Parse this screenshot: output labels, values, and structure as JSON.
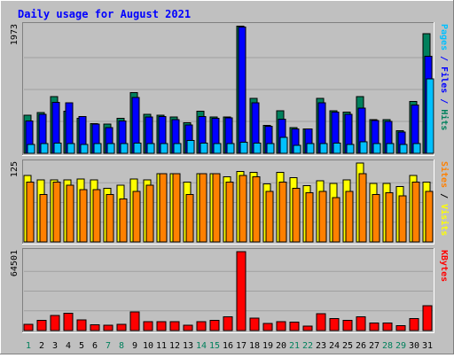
{
  "chart_data": {
    "type": "bar",
    "title": "Daily usage for August 2021",
    "colors": {
      "background": "#c0c0c0",
      "hits": "#00805c",
      "files": "#0000ff",
      "pages": "#00c0ff",
      "visits": "#ffff00",
      "sites": "#ff8000",
      "kbytes": "#ff0000",
      "title": "#0000ff",
      "weekend_label": "#00805c"
    },
    "categories": [
      "1",
      "2",
      "3",
      "4",
      "5",
      "6",
      "7",
      "8",
      "9",
      "10",
      "11",
      "12",
      "13",
      "14",
      "15",
      "16",
      "17",
      "18",
      "19",
      "20",
      "21",
      "22",
      "23",
      "24",
      "25",
      "26",
      "27",
      "28",
      "29",
      "30",
      "31"
    ],
    "weekend_days": [
      "1",
      "7",
      "8",
      "14",
      "15",
      "21",
      "22",
      "28",
      "29"
    ],
    "panels": [
      {
        "id": "hits-files-pages",
        "axis_label": "Pages / Files / Hits",
        "axis_label_parts": [
          {
            "text": "Pages",
            "color": "#00c0ff"
          },
          {
            "text": " / ",
            "color": "#0000ff"
          },
          {
            "text": "Files",
            "color": "#0000ff"
          },
          {
            "text": " / ",
            "color": "#0000ff"
          },
          {
            "text": "Hits",
            "color": "#00805c"
          }
        ],
        "max_label": "1973",
        "ymax": 1973,
        "series": [
          {
            "name": "Hits",
            "color": "#00805c",
            "values": [
              590,
              630,
              880,
              650,
              540,
              460,
              450,
              540,
              940,
              600,
              590,
              560,
              470,
              650,
              560,
              560,
              1965,
              850,
              430,
              660,
              400,
              380,
              850,
              660,
              640,
              880,
              520,
              520,
              350,
              800,
              1850
            ]
          },
          {
            "name": "Files",
            "color": "#0000ff",
            "values": [
              500,
              600,
              790,
              780,
              570,
              450,
              400,
              500,
              860,
              560,
              570,
              520,
              440,
              570,
              540,
              550,
              1950,
              780,
              420,
              530,
              380,
              380,
              780,
              640,
              600,
              700,
              510,
              490,
              330,
              750,
              1500
            ]
          },
          {
            "name": "Pages",
            "color": "#00c0ff",
            "values": [
              140,
              150,
              160,
              150,
              140,
              150,
              150,
              150,
              160,
              150,
              150,
              150,
              200,
              160,
              150,
              150,
              170,
              160,
              150,
              250,
              120,
              150,
              150,
              160,
              140,
              180,
              150,
              150,
              140,
              150,
              1150
            ]
          }
        ]
      },
      {
        "id": "visits-sites",
        "axis_label": "Sites / Visits",
        "axis_label_parts": [
          {
            "text": "Sites",
            "color": "#ff8000"
          },
          {
            "text": " / ",
            "color": "#000000"
          },
          {
            "text": "Visits",
            "color": "#ffff00"
          }
        ],
        "max_label": "125",
        "ymax": 125,
        "series": [
          {
            "name": "Visits",
            "color": "#ffff00",
            "values": [
              105,
              98,
              98,
              98,
              100,
              98,
              85,
              90,
              100,
              98,
              108,
              108,
              95,
              108,
              108,
              103,
              112,
              110,
              92,
              110,
              102,
              89,
              97,
              93,
              98,
              125,
              93,
              93,
              88,
              105,
              95
            ]
          },
          {
            "name": "Sites",
            "color": "#ff8000",
            "values": [
              95,
              75,
              95,
              90,
              83,
              83,
              75,
              68,
              80,
              90,
              108,
              108,
              75,
              108,
              108,
              95,
              105,
              103,
              80,
              95,
              85,
              78,
              80,
              70,
              80,
              108,
              75,
              78,
              73,
              95,
              80
            ]
          }
        ]
      },
      {
        "id": "kbytes",
        "axis_label": "KBytes",
        "axis_label_parts": [
          {
            "text": "KBytes",
            "color": "#ff0000"
          }
        ],
        "max_label": "64501",
        "ymax": 64501,
        "series": [
          {
            "name": "KBytes",
            "color": "#ff0000",
            "values": [
              5000,
              8400,
              12200,
              14100,
              8700,
              4600,
              4200,
              5000,
              15300,
              7200,
              7200,
              7200,
              4400,
              7200,
              8500,
              11100,
              64501,
              10200,
              5700,
              7400,
              6900,
              3700,
              13600,
              9900,
              8400,
              11200,
              6000,
              6000,
              3900,
              9800,
              20400
            ]
          }
        ]
      }
    ]
  }
}
